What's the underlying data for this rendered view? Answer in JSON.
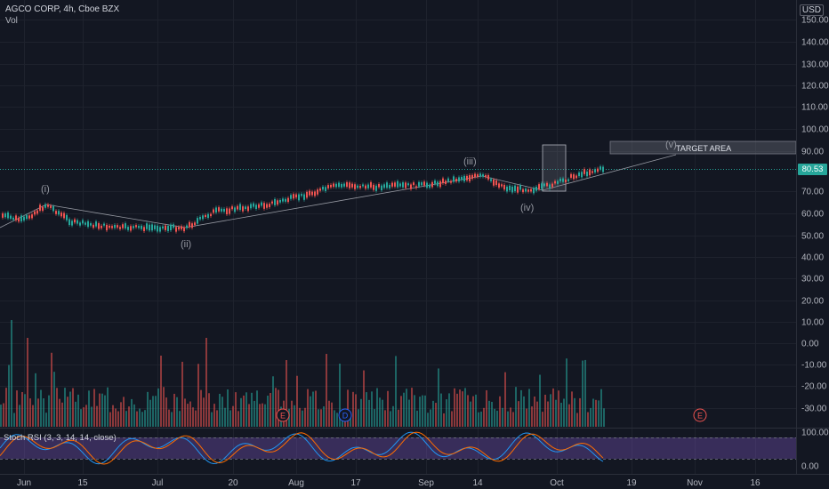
{
  "header": {
    "title": "AGCO CORP, 4h, Cboe BZX",
    "volume_label": "Vol",
    "currency": "USD"
  },
  "price_axis": {
    "labels": [
      "150.00",
      "140.00",
      "130.00",
      "120.00",
      "110.00",
      "100.00",
      "90.00",
      "80.53",
      "70.00",
      "60.00",
      "50.00",
      "40.00",
      "30.00",
      "20.00",
      "10.00",
      "0.00",
      "-10.00",
      "-20.00",
      "-30.00"
    ]
  },
  "current_price": "80.53",
  "rsi": {
    "label": "Stoch RSI (3, 3, 14, 14, close)",
    "axis_labels": [
      "100.00",
      "0.00"
    ]
  },
  "time_axis": {
    "labels": [
      "Jun",
      "15",
      "Jul",
      "20",
      "Aug",
      "17",
      "Sep",
      "14",
      "Oct",
      "19",
      "Nov",
      "16"
    ]
  },
  "wave_labels": [
    "(i)",
    "(ii)",
    "(iii)",
    "(iv)",
    "(v)"
  ],
  "annotation": "TARGET AREA",
  "events": [
    "E",
    "D",
    "E"
  ],
  "colors": {
    "background": "#131722",
    "up": "#26a69a",
    "down": "#ef5350",
    "rsi_k": "#2196f3",
    "rsi_d": "#ff6d00",
    "rsi_band": "#7e57c2"
  }
}
